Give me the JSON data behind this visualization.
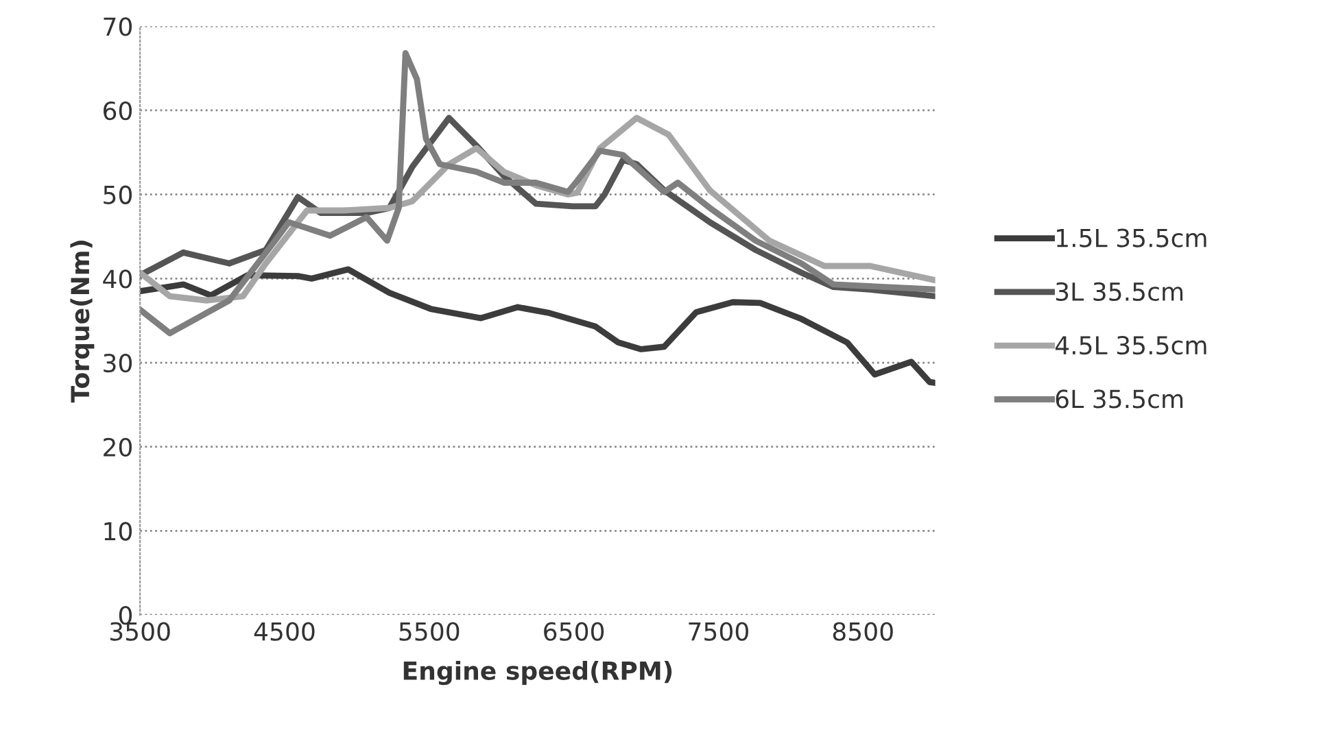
{
  "chart_data": {
    "type": "line",
    "xlabel": "Engine speed(RPM)",
    "ylabel": "Torque(Nm)",
    "xlim": [
      3500,
      9000
    ],
    "xticks": [
      3500,
      4500,
      5500,
      6500,
      7500,
      8500
    ],
    "ylim": [
      0,
      70
    ],
    "yticks": [
      0,
      10,
      20,
      30,
      40,
      50,
      60,
      70
    ],
    "grid": "y",
    "legend": "right",
    "marker": "none",
    "line_style": "solid",
    "series": [
      {
        "name": "1.5L 35.5cm",
        "color": "#3c3c3c",
        "x": [
          3500,
          3800,
          3990,
          4244,
          4592,
          4687,
          4940,
          5225,
          5510,
          5858,
          6112,
          6333,
          6650,
          6808,
          6966,
          7125,
          7346,
          7600,
          7789,
          8074,
          8391,
          8581,
          8834,
          8961,
          9000
        ],
        "values": [
          38.5,
          39.3,
          38.0,
          40.4,
          40.3,
          40.0,
          41.1,
          38.3,
          36.4,
          35.3,
          36.6,
          35.9,
          34.3,
          32.4,
          31.6,
          31.9,
          36.0,
          37.2,
          37.1,
          35.2,
          32.4,
          28.6,
          30.1,
          27.7,
          27.6
        ]
      },
      {
        "name": "3L 35.5cm",
        "color": "#555555",
        "x": [
          3500,
          3800,
          4117,
          4370,
          4592,
          4750,
          5067,
          5225,
          5384,
          5637,
          5827,
          6017,
          6238,
          6491,
          6650,
          6713,
          6840,
          6935,
          7125,
          7441,
          7758,
          8074,
          8296,
          8549,
          9000
        ],
        "values": [
          40.4,
          43.1,
          41.8,
          43.4,
          49.7,
          47.8,
          47.8,
          48.4,
          53.3,
          59.1,
          55.8,
          52.2,
          48.9,
          48.6,
          48.6,
          50.0,
          54.1,
          53.6,
          50.5,
          46.7,
          43.4,
          40.7,
          39.0,
          38.7,
          37.9
        ]
      },
      {
        "name": "4.5L 35.5cm",
        "color": "#a6a6a6",
        "x": [
          3500,
          3706,
          3959,
          4212,
          4370,
          4655,
          4909,
          5225,
          5384,
          5637,
          5827,
          6017,
          6238,
          6460,
          6523,
          6681,
          6935,
          7156,
          7441,
          7853,
          8233,
          8549,
          9000
        ],
        "values": [
          40.7,
          37.9,
          37.4,
          37.9,
          41.8,
          48.1,
          48.1,
          48.4,
          49.2,
          53.6,
          55.5,
          52.7,
          51.1,
          50.0,
          50.2,
          55.5,
          59.1,
          57.1,
          50.5,
          44.5,
          41.5,
          41.5,
          39.8
        ]
      },
      {
        "name": "6L 35.5cm",
        "color": "#7f7f7f",
        "x": [
          3500,
          3706,
          4117,
          4434,
          4529,
          4814,
          5067,
          5209,
          5289,
          5336,
          5415,
          5478,
          5573,
          5827,
          6017,
          6238,
          6460,
          6523,
          6681,
          6840,
          7125,
          7220,
          7441,
          7758,
          8074,
          8296,
          9000
        ],
        "values": [
          36.3,
          33.5,
          37.4,
          44.5,
          46.7,
          45.1,
          47.3,
          44.5,
          48.4,
          66.8,
          63.7,
          56.6,
          53.6,
          52.7,
          51.4,
          51.4,
          50.3,
          51.6,
          55.2,
          54.7,
          50.3,
          51.4,
          48.4,
          44.5,
          41.8,
          39.3,
          38.7
        ]
      }
    ]
  }
}
